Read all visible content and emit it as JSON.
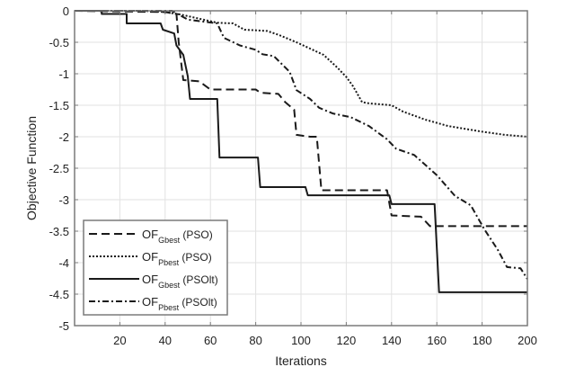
{
  "chart_data": {
    "type": "line",
    "title": "",
    "xlabel": "Iterations",
    "ylabel": "Objective Function",
    "xlim": [
      0,
      200
    ],
    "ylim": [
      -5,
      0
    ],
    "xticks": [
      20,
      40,
      60,
      80,
      100,
      120,
      140,
      160,
      180,
      200
    ],
    "xtick_labels": [
      "20",
      "40",
      "60",
      "80",
      "100",
      "120",
      "140",
      "160",
      "180",
      "200"
    ],
    "yticks": [
      0,
      -0.5,
      -1,
      -1.5,
      -2,
      -2.5,
      -3,
      -3.5,
      -4,
      -4.5,
      -5
    ],
    "ytick_labels": [
      "0",
      "-0.5",
      "-1",
      "-1.5",
      "-2",
      "-2.5",
      "-3",
      "-3.5",
      "-4",
      "-4.5",
      "-5"
    ],
    "grid": true,
    "legend_position": "lower left",
    "series": [
      {
        "name": "OF_Gbest (PSO)",
        "label_main": "OF",
        "label_sub": "Gbest",
        "label_suffix": " (PSO)",
        "style": "dashed",
        "color": "#1a1a1a",
        "points": [
          [
            0,
            0
          ],
          [
            40,
            -0.02
          ],
          [
            45,
            -0.05
          ],
          [
            46,
            -0.5
          ],
          [
            48,
            -1.1
          ],
          [
            55,
            -1.12
          ],
          [
            60,
            -1.25
          ],
          [
            80,
            -1.25
          ],
          [
            82,
            -1.3
          ],
          [
            90,
            -1.32
          ],
          [
            93,
            -1.45
          ],
          [
            97,
            -1.57
          ],
          [
            98,
            -1.97
          ],
          [
            104,
            -2.0
          ],
          [
            107,
            -2.0
          ],
          [
            109,
            -2.85
          ],
          [
            138,
            -2.85
          ],
          [
            140,
            -3.25
          ],
          [
            153,
            -3.27
          ],
          [
            157,
            -3.42
          ],
          [
            200,
            -3.42
          ]
        ]
      },
      {
        "name": "OF_Pbest (PSO)",
        "label_main": "OF",
        "label_sub": "Pbest",
        "label_suffix": " (PSO)",
        "style": "dotted",
        "color": "#1a1a1a",
        "points": [
          [
            0,
            0
          ],
          [
            30,
            0
          ],
          [
            40,
            -0.02
          ],
          [
            47,
            -0.06
          ],
          [
            63,
            -0.19
          ],
          [
            70,
            -0.2
          ],
          [
            75,
            -0.3
          ],
          [
            85,
            -0.32
          ],
          [
            90,
            -0.38
          ],
          [
            98,
            -0.5
          ],
          [
            110,
            -0.7
          ],
          [
            116,
            -0.9
          ],
          [
            120,
            -1.05
          ],
          [
            123,
            -1.2
          ],
          [
            127,
            -1.45
          ],
          [
            130,
            -1.47
          ],
          [
            140,
            -1.5
          ],
          [
            145,
            -1.6
          ],
          [
            155,
            -1.73
          ],
          [
            165,
            -1.83
          ],
          [
            180,
            -1.92
          ],
          [
            190,
            -1.97
          ],
          [
            200,
            -2.0
          ]
        ]
      },
      {
        "name": "OF_Gbest (PSOlt)",
        "label_main": "OF",
        "label_sub": "Gbest",
        "label_suffix": " (PSOlt)",
        "style": "solid",
        "color": "#1a1a1a",
        "points": [
          [
            0,
            0
          ],
          [
            12,
            0
          ],
          [
            12,
            -0.05
          ],
          [
            23,
            -0.05
          ],
          [
            23,
            -0.2
          ],
          [
            38,
            -0.2
          ],
          [
            39,
            -0.3
          ],
          [
            44,
            -0.36
          ],
          [
            45,
            -0.55
          ],
          [
            48,
            -0.7
          ],
          [
            50,
            -1.04
          ],
          [
            51,
            -1.4
          ],
          [
            63,
            -1.4
          ],
          [
            64,
            -2.33
          ],
          [
            81,
            -2.33
          ],
          [
            82,
            -2.8
          ],
          [
            102,
            -2.8
          ],
          [
            103,
            -2.93
          ],
          [
            139,
            -2.93
          ],
          [
            140,
            -3.07
          ],
          [
            159,
            -3.07
          ],
          [
            161,
            -4.47
          ],
          [
            200,
            -4.47
          ]
        ]
      },
      {
        "name": "OF_Pbest (PSOlt)",
        "label_main": "OF",
        "label_sub": "Pbest",
        "label_suffix": " (PSOlt)",
        "style": "dashdot",
        "color": "#1a1a1a",
        "points": [
          [
            0,
            0
          ],
          [
            43,
            0
          ],
          [
            50,
            -0.14
          ],
          [
            63,
            -0.2
          ],
          [
            66,
            -0.43
          ],
          [
            73,
            -0.55
          ],
          [
            80,
            -0.62
          ],
          [
            83,
            -0.69
          ],
          [
            88,
            -0.72
          ],
          [
            95,
            -0.97
          ],
          [
            98,
            -1.26
          ],
          [
            104,
            -1.4
          ],
          [
            108,
            -1.54
          ],
          [
            114,
            -1.63
          ],
          [
            122,
            -1.69
          ],
          [
            130,
            -1.83
          ],
          [
            138,
            -2.04
          ],
          [
            142,
            -2.19
          ],
          [
            150,
            -2.29
          ],
          [
            160,
            -2.61
          ],
          [
            168,
            -2.94
          ],
          [
            175,
            -3.09
          ],
          [
            181,
            -3.47
          ],
          [
            187,
            -3.8
          ],
          [
            191,
            -4.07
          ],
          [
            197,
            -4.09
          ],
          [
            200,
            -4.26
          ]
        ]
      }
    ]
  },
  "colors": {
    "axis": "#7a7a7a",
    "grid": "#e2e2e2",
    "line": "#1a1a1a",
    "background": "#ffffff"
  }
}
